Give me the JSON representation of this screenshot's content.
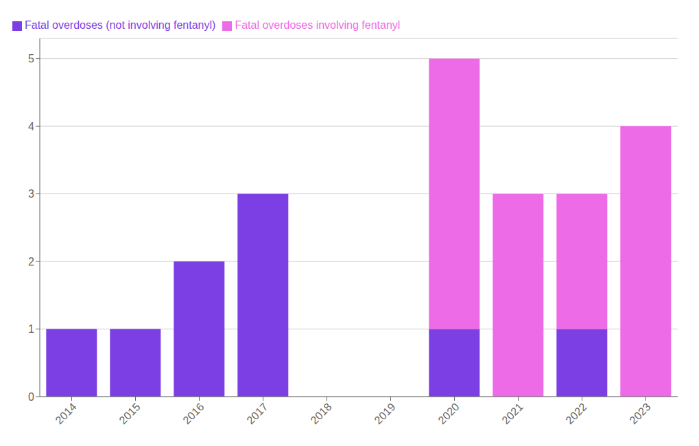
{
  "chart_data": {
    "type": "bar",
    "stacked": true,
    "categories": [
      "2014",
      "2015",
      "2016",
      "2017",
      "2018",
      "2019",
      "2020",
      "2021",
      "2022",
      "2023"
    ],
    "series": [
      {
        "name": "Fatal overdoses (not involving fentanyl)",
        "color": "#7B3FE4",
        "values": [
          1,
          1,
          2,
          3,
          0,
          0,
          1,
          0,
          1,
          0
        ]
      },
      {
        "name": "Fatal overdoses involving fentanyl",
        "color": "#EE6BE8",
        "values": [
          0,
          0,
          0,
          0,
          0,
          0,
          4,
          3,
          2,
          4
        ]
      }
    ],
    "ylim": [
      0,
      5.3
    ],
    "yticks": [
      0,
      1,
      2,
      3,
      4,
      5
    ],
    "grid": true,
    "legend": "top left"
  }
}
